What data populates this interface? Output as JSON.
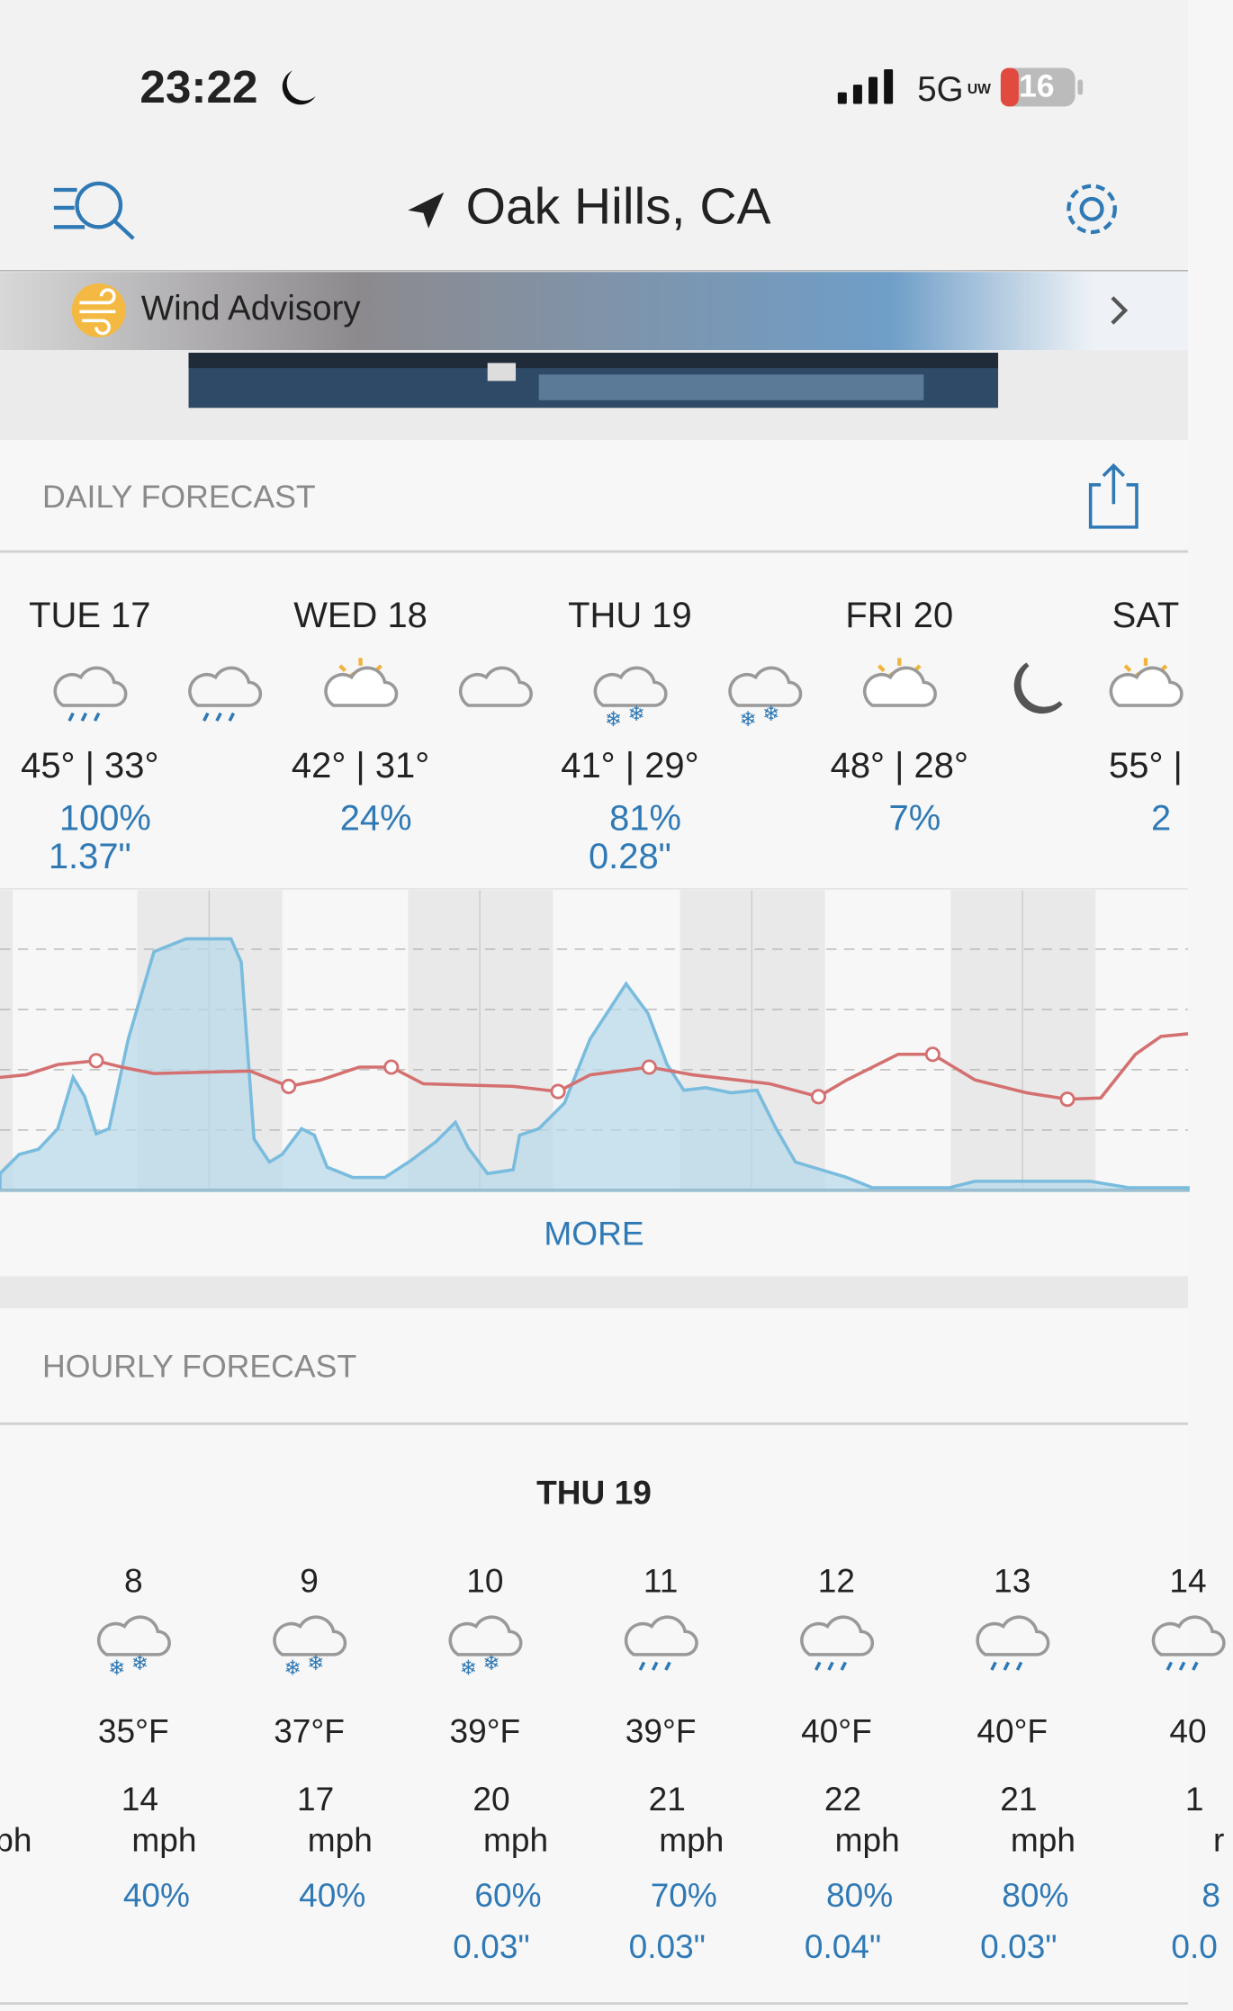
{
  "status_bar": {
    "time": "23:22",
    "network": "5G",
    "network_sub": "UW",
    "battery": "16"
  },
  "header": {
    "location": "Oak Hills, CA"
  },
  "advisory": {
    "label": "Wind Advisory"
  },
  "daily_forecast": {
    "title": "DAILY FORECAST",
    "more": "MORE",
    "days": [
      {
        "day": "TUE 17",
        "temps": "45° | 33°",
        "precip_chance": "100%",
        "precip_amount": "1.37\""
      },
      {
        "day": "WED 18",
        "temps": "42° | 31°",
        "precip_chance": "24%"
      },
      {
        "day": "THU 19",
        "temps": "41° | 29°",
        "precip_chance": "81%",
        "precip_amount": "0.28\""
      },
      {
        "day": "FRI 20",
        "temps": "48° | 28°",
        "precip_chance": "7%"
      },
      {
        "day": "SAT",
        "temps": "55° | ",
        "precip_chance": "2"
      }
    ]
  },
  "hourly_forecast": {
    "title": "HOURLY FORECAST",
    "date": "THU 19",
    "left_partial": "ph",
    "hours": [
      {
        "hour": "8",
        "temp": "35°F",
        "wind": "14",
        "wind_unit": "mph",
        "precip_chance": "40%"
      },
      {
        "hour": "9",
        "temp": "37°F",
        "wind": "17",
        "wind_unit": "mph",
        "precip_chance": "40%"
      },
      {
        "hour": "10",
        "temp": "39°F",
        "wind": "20",
        "wind_unit": "mph",
        "precip_chance": "60%",
        "precip_amount": "0.03\""
      },
      {
        "hour": "11",
        "temp": "39°F",
        "wind": "21",
        "wind_unit": "mph",
        "precip_chance": "70%",
        "precip_amount": "0.03\""
      },
      {
        "hour": "12",
        "temp": "40°F",
        "wind": "22",
        "wind_unit": "mph",
        "precip_chance": "80%",
        "precip_amount": "0.04\""
      },
      {
        "hour": "13",
        "temp": "40°F",
        "wind": "21",
        "wind_unit": "mph",
        "precip_chance": "80%",
        "precip_amount": "0.03\""
      },
      {
        "hour": "14",
        "temp": "40",
        "wind": "1",
        "wind_unit": "r",
        "precip_chance": "8",
        "precip_amount": "0.0"
      }
    ]
  }
}
